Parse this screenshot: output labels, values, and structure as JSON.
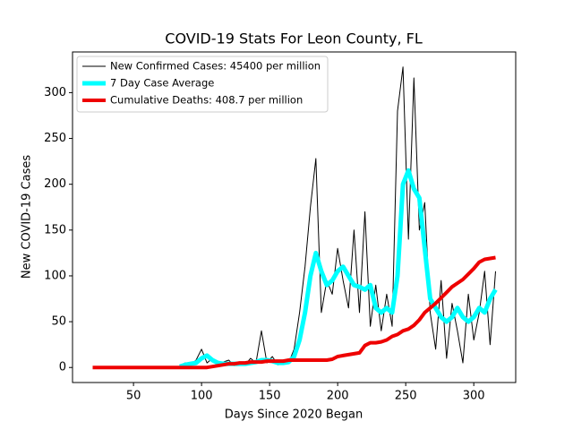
{
  "chart_data": {
    "type": "line",
    "title": "COVID-19 Stats For Leon County, FL",
    "x_label": "Days Since 2020 Began",
    "y_label": "New COVID-19 Cases",
    "x": [
      20,
      24,
      28,
      32,
      36,
      40,
      44,
      48,
      52,
      56,
      60,
      64,
      68,
      72,
      76,
      80,
      84,
      88,
      92,
      96,
      100,
      104,
      108,
      112,
      116,
      120,
      124,
      128,
      132,
      136,
      140,
      144,
      148,
      152,
      156,
      160,
      164,
      168,
      172,
      176,
      180,
      184,
      188,
      192,
      196,
      200,
      204,
      208,
      212,
      216,
      220,
      224,
      228,
      232,
      236,
      240,
      244,
      248,
      252,
      256,
      260,
      264,
      268,
      272,
      276,
      280,
      284,
      288,
      292,
      296,
      300,
      304,
      308,
      312,
      316
    ],
    "series": [
      {
        "name": "New Confirmed Cases: 45400 per million",
        "color": "#000000",
        "width": 1,
        "values": [
          null,
          null,
          null,
          null,
          null,
          null,
          null,
          null,
          null,
          null,
          null,
          null,
          null,
          null,
          null,
          null,
          2,
          5,
          3,
          8,
          20,
          5,
          10,
          3,
          6,
          8,
          2,
          5,
          3,
          10,
          5,
          40,
          5,
          12,
          3,
          8,
          5,
          20,
          60,
          110,
          175,
          228,
          60,
          95,
          80,
          130,
          95,
          65,
          150,
          60,
          170,
          45,
          90,
          40,
          80,
          45,
          280,
          328,
          140,
          316,
          150,
          180,
          60,
          20,
          95,
          10,
          70,
          40,
          5,
          80,
          30,
          60,
          105,
          25,
          105
        ]
      },
      {
        "name": "7 Day Case Average",
        "color": "#00ffff",
        "width": 5,
        "values": [
          null,
          null,
          null,
          null,
          null,
          null,
          null,
          null,
          null,
          null,
          null,
          null,
          null,
          null,
          null,
          null,
          1,
          3,
          4,
          5,
          10,
          13,
          8,
          5,
          4,
          4,
          4,
          4,
          4,
          5,
          6,
          8,
          8,
          7,
          5,
          5,
          6,
          12,
          30,
          60,
          100,
          125,
          105,
          90,
          95,
          105,
          110,
          100,
          90,
          88,
          85,
          90,
          65,
          60,
          65,
          60,
          100,
          200,
          215,
          195,
          185,
          130,
          75,
          65,
          55,
          50,
          55,
          65,
          55,
          50,
          55,
          65,
          60,
          75,
          85
        ]
      },
      {
        "name": "Cumulative Deaths: 408.7 per million",
        "color": "#ee0000",
        "width": 4,
        "values": [
          0,
          0,
          0,
          0,
          0,
          0,
          0,
          0,
          0,
          0,
          0,
          0,
          0,
          0,
          0,
          0,
          0,
          0,
          0,
          0,
          0,
          0,
          1,
          2,
          3,
          4,
          4,
          5,
          5,
          6,
          6,
          6,
          7,
          7,
          7,
          7,
          8,
          8,
          8,
          8,
          8,
          8,
          8,
          8,
          9,
          12,
          13,
          14,
          15,
          16,
          24,
          27,
          27,
          28,
          30,
          34,
          36,
          40,
          42,
          46,
          52,
          60,
          65,
          70,
          76,
          82,
          88,
          92,
          96,
          102,
          108,
          115,
          118,
          119,
          120
        ]
      }
    ],
    "xlim": [
      5.2,
      330.8
    ],
    "ylim": [
      -16.4,
      344.4
    ],
    "xticks": [
      50,
      100,
      150,
      200,
      250,
      300
    ],
    "yticks": [
      0,
      50,
      100,
      150,
      200,
      250,
      300
    ],
    "legend": "upper left"
  }
}
